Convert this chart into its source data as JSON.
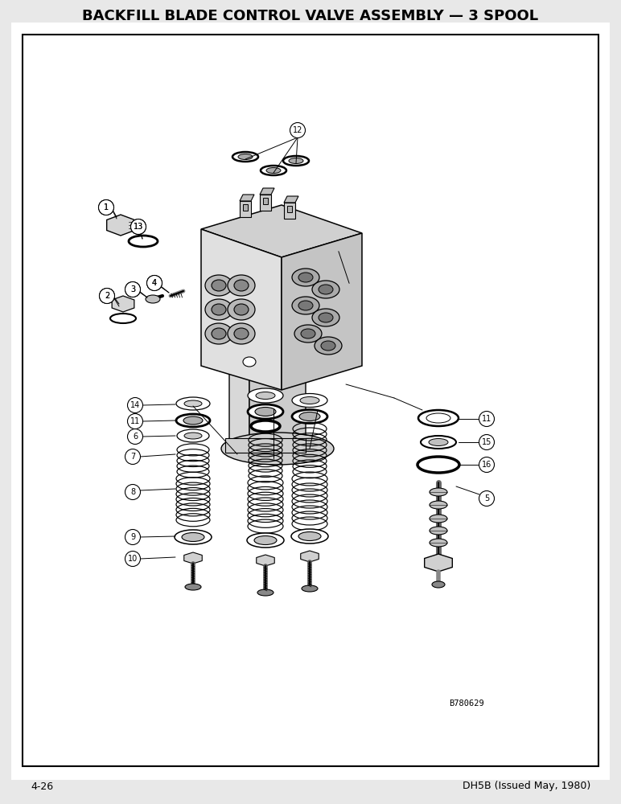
{
  "title": "BACKFILL BLADE CONTROL VALVE ASSEMBLY — 3 SPOOL",
  "title_fontsize": 13,
  "footer_left": "4-26",
  "footer_right": "DH5B (Issued May, 1980)",
  "footer_fontsize": 9,
  "reference_code": "B780629",
  "bg_color": "#e8e8e8",
  "page_bg": "#ffffff",
  "border_color": "#000000",
  "text_color": "#000000"
}
